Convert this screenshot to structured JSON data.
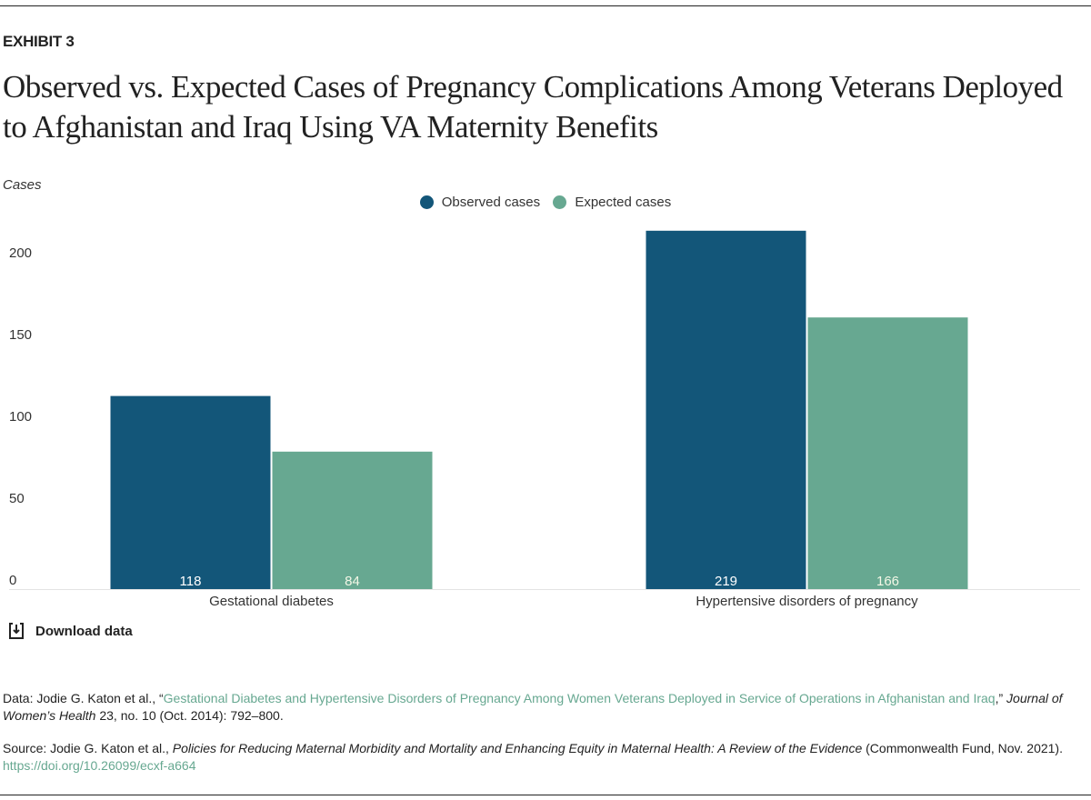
{
  "header": {
    "exhibit": "EXHIBIT 3",
    "title": "Observed vs. Expected Cases of Pregnancy Complications Among Veterans Deployed to Afghanistan and Iraq Using VA Maternity Benefits"
  },
  "chart_data": {
    "type": "bar",
    "ylabel": "Cases",
    "xlabel": "",
    "categories": [
      "Gestational diabetes",
      "Hypertensive disorders of pregnancy"
    ],
    "series": [
      {
        "name": "Observed cases",
        "values": [
          118,
          219
        ],
        "color": "#135679"
      },
      {
        "name": "Expected cases",
        "values": [
          84,
          166
        ],
        "color": "#67a891"
      }
    ],
    "yticks": [
      0,
      50,
      100,
      150,
      200
    ],
    "ylim": [
      0,
      219
    ],
    "grid": false,
    "legend": "top-center",
    "data_labels": "inside-bottom"
  },
  "download": {
    "label": "Download data",
    "icon": "download-icon"
  },
  "notes": {
    "data_prefix": "Data: Jodie G. Katon et al., “",
    "data_link": "Gestational Diabetes and Hypertensive Disorders of Pregnancy Among Women Veterans Deployed in Service of Operations in Afghanistan and Iraq",
    "data_mid": ",” ",
    "data_journal": "Journal of Women’s Health",
    "data_suffix": " 23, no. 10 (Oct. 2014): 792–800.",
    "source_prefix": "Source: Jodie G. Katon et al., ",
    "source_title": "Policies for Reducing Maternal Morbidity and Mortality and Enhancing Equity in Maternal Health: A Review of the Evidence",
    "source_suffix": " (Commonwealth Fund, Nov. 2021).",
    "source_link": "https://doi.org/10.26099/ecxf-a664"
  },
  "colors": {
    "link": "#67a891",
    "observed": "#135679",
    "expected": "#67a891"
  }
}
